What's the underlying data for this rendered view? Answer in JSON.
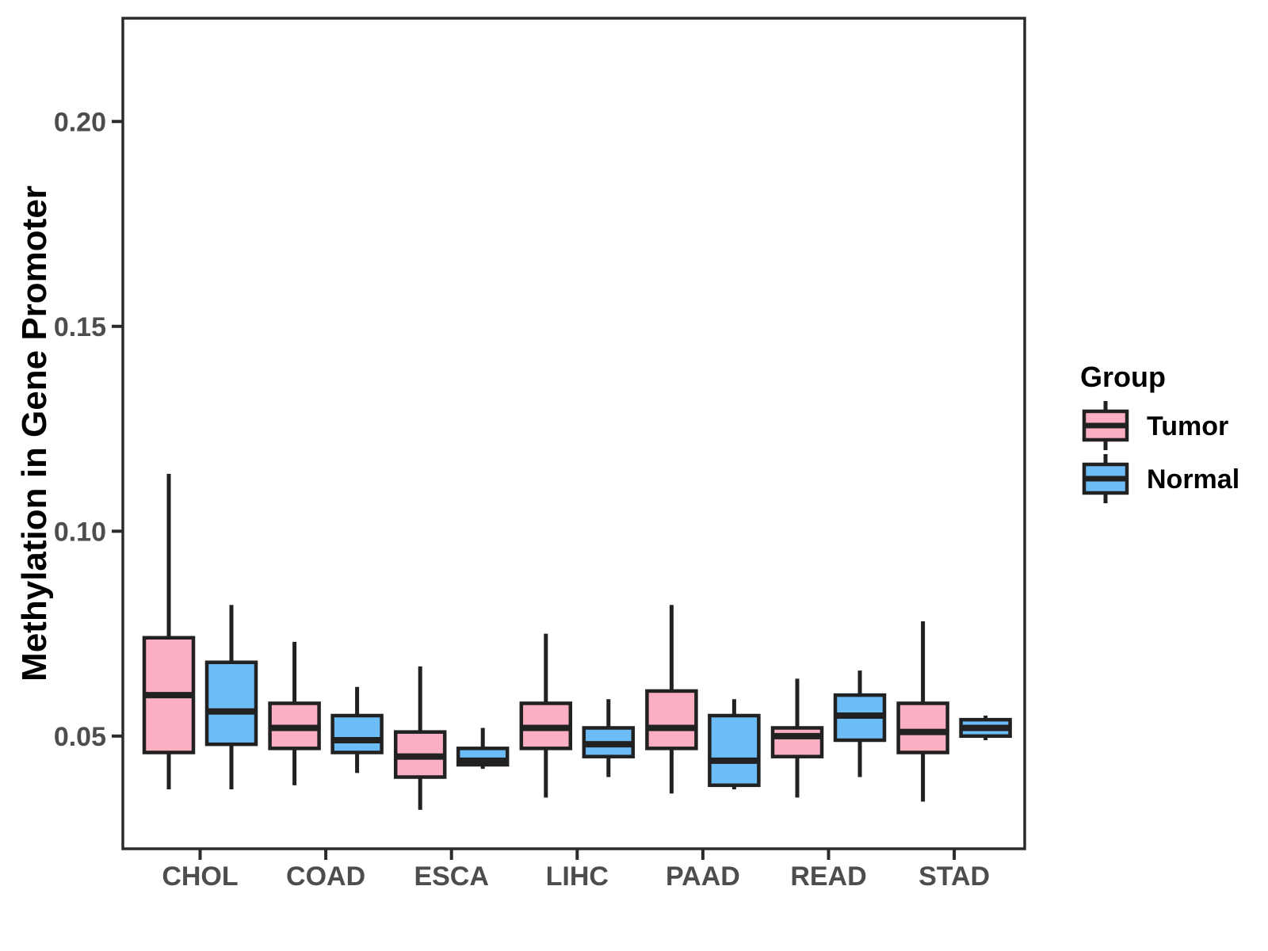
{
  "figure": {
    "y_axis_title": "Methylation in Gene Promoter",
    "y_tick_labels": [
      "0.05",
      "0.10",
      "0.15",
      "0.20"
    ],
    "x_tick_labels": [
      "CHOL",
      "COAD",
      "ESCA",
      "LIHC",
      "PAAD",
      "READ",
      "STAD"
    ],
    "legend": {
      "title": "Group",
      "items": [
        {
          "label": "Tumor",
          "color": "#FAAFC2"
        },
        {
          "label": "Normal",
          "color": "#6CBCF5"
        }
      ]
    }
  },
  "colors": {
    "tumor_fill": "#FAAFC2",
    "normal_fill": "#6CBCF5",
    "box_stroke": "#212121",
    "axis_text": "#4D4D4D",
    "title_text": "#000000",
    "panel_border": "#2B2B2B",
    "background": "#FFFFFF"
  },
  "chart_data": {
    "type": "boxplot",
    "title": "",
    "xlabel": "",
    "ylabel": "Methylation in Gene Promoter",
    "categories": [
      "CHOL",
      "COAD",
      "ESCA",
      "LIHC",
      "PAAD",
      "READ",
      "STAD"
    ],
    "groups": [
      "Tumor",
      "Normal"
    ],
    "legend_title": "Group",
    "legend_position": "right",
    "grid": false,
    "ylim": [
      0.0225,
      0.2252
    ],
    "yticks": [
      0.05,
      0.1,
      0.15,
      0.2
    ],
    "series": [
      {
        "name": "Tumor",
        "fill": "#FAAFC2",
        "boxes": [
          {
            "category": "CHOL",
            "whisker_low": 0.037,
            "q1": 0.046,
            "median": 0.06,
            "q3": 0.074,
            "whisker_high": 0.114
          },
          {
            "category": "COAD",
            "whisker_low": 0.038,
            "q1": 0.047,
            "median": 0.052,
            "q3": 0.058,
            "whisker_high": 0.073
          },
          {
            "category": "ESCA",
            "whisker_low": 0.032,
            "q1": 0.04,
            "median": 0.045,
            "q3": 0.051,
            "whisker_high": 0.067
          },
          {
            "category": "LIHC",
            "whisker_low": 0.035,
            "q1": 0.047,
            "median": 0.052,
            "q3": 0.058,
            "whisker_high": 0.075
          },
          {
            "category": "PAAD",
            "whisker_low": 0.036,
            "q1": 0.047,
            "median": 0.052,
            "q3": 0.061,
            "whisker_high": 0.082
          },
          {
            "category": "READ",
            "whisker_low": 0.035,
            "q1": 0.045,
            "median": 0.05,
            "q3": 0.052,
            "whisker_high": 0.064
          },
          {
            "category": "STAD",
            "whisker_low": 0.034,
            "q1": 0.046,
            "median": 0.051,
            "q3": 0.058,
            "whisker_high": 0.078
          }
        ]
      },
      {
        "name": "Normal",
        "fill": "#6CBCF5",
        "boxes": [
          {
            "category": "CHOL",
            "whisker_low": 0.037,
            "q1": 0.048,
            "median": 0.056,
            "q3": 0.068,
            "whisker_high": 0.082
          },
          {
            "category": "COAD",
            "whisker_low": 0.041,
            "q1": 0.046,
            "median": 0.049,
            "q3": 0.055,
            "whisker_high": 0.062
          },
          {
            "category": "ESCA",
            "whisker_low": 0.042,
            "q1": 0.043,
            "median": 0.044,
            "q3": 0.047,
            "whisker_high": 0.052
          },
          {
            "category": "LIHC",
            "whisker_low": 0.04,
            "q1": 0.045,
            "median": 0.048,
            "q3": 0.052,
            "whisker_high": 0.059
          },
          {
            "category": "PAAD",
            "whisker_low": 0.037,
            "q1": 0.038,
            "median": 0.044,
            "q3": 0.055,
            "whisker_high": 0.059
          },
          {
            "category": "READ",
            "whisker_low": 0.04,
            "q1": 0.049,
            "median": 0.055,
            "q3": 0.06,
            "whisker_high": 0.066
          },
          {
            "category": "STAD",
            "whisker_low": 0.049,
            "q1": 0.05,
            "median": 0.052,
            "q3": 0.054,
            "whisker_high": 0.055
          }
        ]
      }
    ]
  }
}
